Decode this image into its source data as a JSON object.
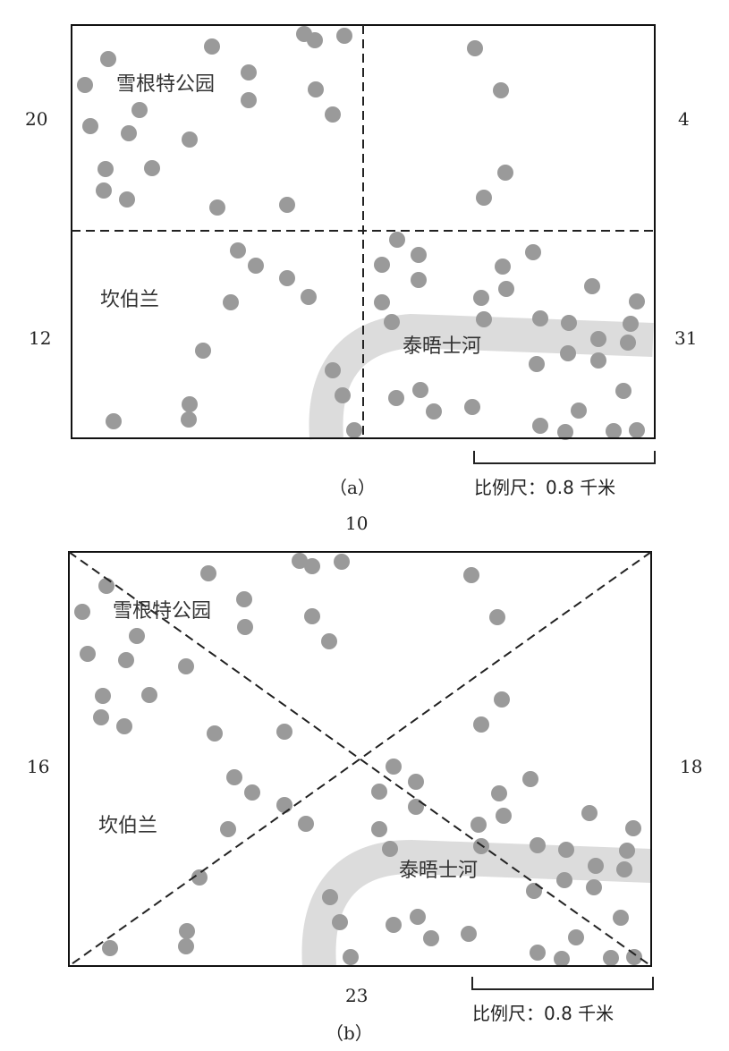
{
  "panel_a": {
    "caption": "（a）",
    "labels": {
      "park": "雪根特公园",
      "district": "坎伯兰",
      "river": "泰晤士河"
    },
    "counts": {
      "top_left": "20",
      "top_right": "4",
      "bottom_left": "12",
      "bottom_right": "31"
    },
    "scale": "比例尺：0.8 千米"
  },
  "panel_b": {
    "caption": "（b）",
    "labels": {
      "park": "雪根特公园",
      "district": "坎伯兰",
      "river": "泰晤士河"
    },
    "counts": {
      "top": "10",
      "left": "16",
      "right": "18",
      "bottom": "23"
    },
    "scale": "比例尺：0.8 千米"
  },
  "colors": {
    "dot": "#9a9a9a",
    "river": "#dcdcdc",
    "frame": "#111111",
    "dashes": "#222222"
  }
}
